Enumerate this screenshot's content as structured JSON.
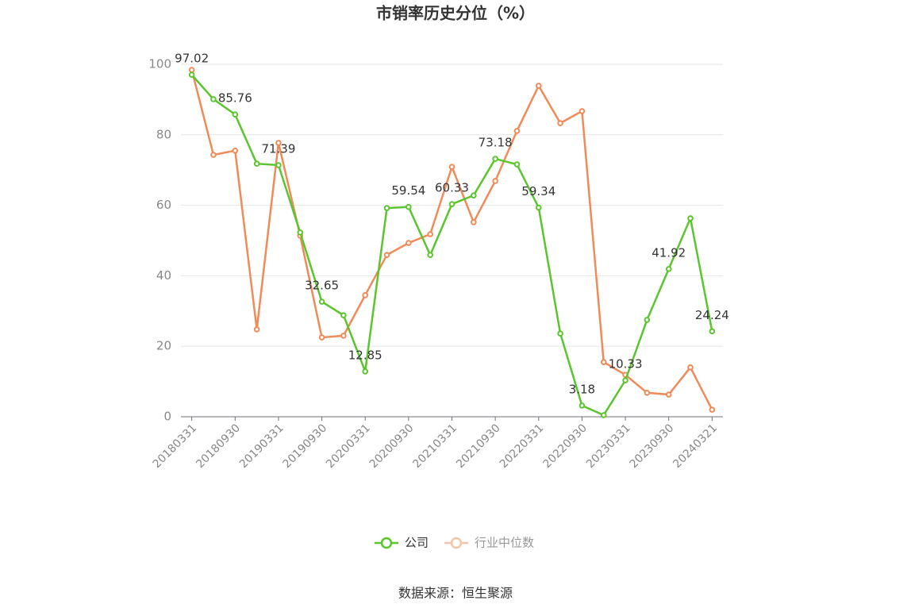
{
  "chart_data": {
    "type": "line",
    "title": "市销率历史分位（%）",
    "source": "数据来源：恒生聚源",
    "categories": [
      "20180331",
      null,
      "20180930",
      null,
      "20190331",
      null,
      "20190930",
      null,
      "20200331",
      null,
      "20200930",
      null,
      "20210331",
      null,
      "20210930",
      null,
      "20220331",
      null,
      "20220930",
      null,
      "20230331",
      null,
      "20230930",
      null,
      "20240321"
    ],
    "series": [
      {
        "name": "公司",
        "color": "#5ac52c",
        "values": [
          97.02,
          90.1,
          85.76,
          71.8,
          71.39,
          52.3,
          32.65,
          28.8,
          12.85,
          59.2,
          59.54,
          45.9,
          60.33,
          62.8,
          73.18,
          71.6,
          59.34,
          23.6,
          3.18,
          0.45,
          10.33,
          27.5,
          41.92,
          56.3,
          24.24
        ]
      },
      {
        "name": "行业中位数",
        "color": "#f08a58",
        "values": [
          98.4,
          74.3,
          75.5,
          24.8,
          77.7,
          51.4,
          22.5,
          23.0,
          34.5,
          45.9,
          49.3,
          51.8,
          70.9,
          55.2,
          66.9,
          81.1,
          93.9,
          83.3,
          86.7,
          15.5,
          11.9,
          6.8,
          6.3,
          14.0,
          2.0
        ]
      }
    ],
    "ylim": [
      0,
      100
    ],
    "yticks": [
      0,
      20,
      40,
      60,
      80,
      100
    ],
    "grid": true
  }
}
